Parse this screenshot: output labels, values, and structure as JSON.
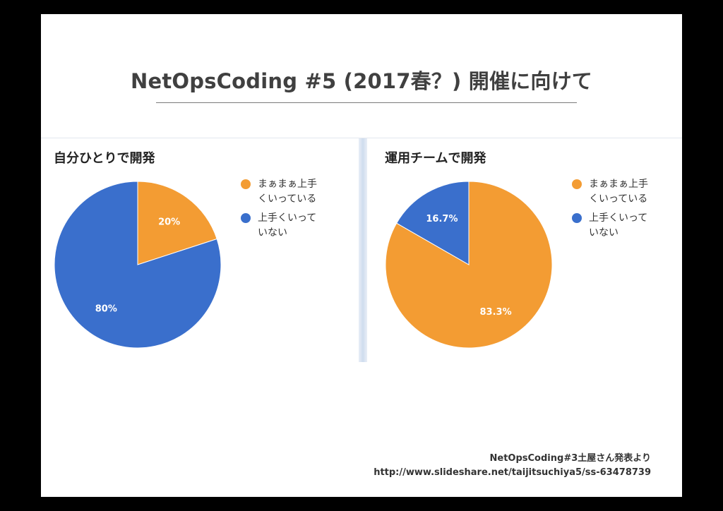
{
  "title": "NetOpsCoding #5 (2017春？) 開催に向けて",
  "source": {
    "line1": "NetOpsCoding#3土屋さん発表より",
    "line2": "http://www.slideshare.net/taijitsuchiya5/ss-63478739"
  },
  "colors": {
    "orange": "#f39c33",
    "blue": "#3a6fcc"
  },
  "chart_data": [
    {
      "type": "pie",
      "title": "自分ひとりで開発",
      "legend_position": "right",
      "slices": [
        {
          "label": "まぁまぁ上手くいっている",
          "label_line1": "まぁまぁ上手",
          "label_line2": "くいっている",
          "value": 20,
          "display": "20%",
          "color": "#f39c33"
        },
        {
          "label": "上手くいっていない",
          "label_line1": "上手くいって",
          "label_line2": "いない",
          "value": 80,
          "display": "80%",
          "color": "#3a6fcc"
        }
      ]
    },
    {
      "type": "pie",
      "title": "運用チームで開発",
      "legend_position": "right",
      "slices": [
        {
          "label": "まぁまぁ上手くいっている",
          "label_line1": "まぁまぁ上手",
          "label_line2": "くいっている",
          "value": 83.3,
          "display": "83.3%",
          "color": "#f39c33"
        },
        {
          "label": "上手くいっていない",
          "label_line1": "上手くいって",
          "label_line2": "いない",
          "value": 16.7,
          "display": "16.7%",
          "color": "#3a6fcc"
        }
      ]
    }
  ]
}
